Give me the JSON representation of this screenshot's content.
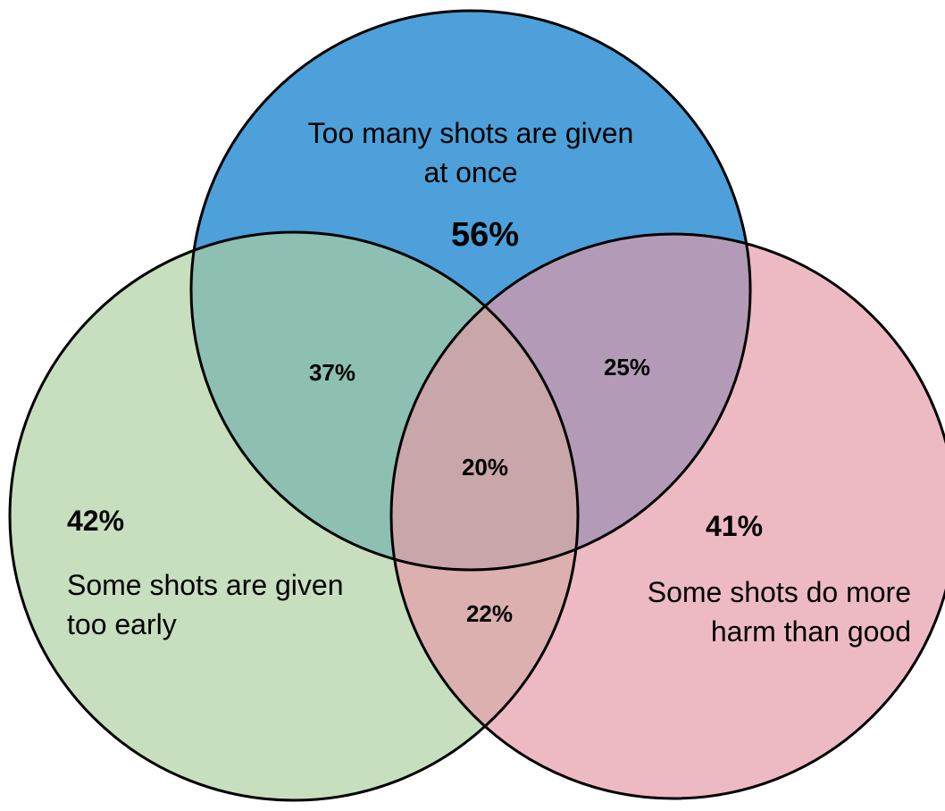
{
  "sets": {
    "top": {
      "label_line1": "Too many shots are given",
      "label_line2": "at once",
      "value": "56%",
      "color": "#2e8fd2"
    },
    "left": {
      "label_line1": "Some shots are given",
      "label_line2": "too early",
      "value": "42%",
      "color": "#acd09f"
    },
    "right": {
      "label_line1": "Some shots do more",
      "label_line2": "harm than good",
      "value": "41%",
      "color": "#e59aa6"
    }
  },
  "intersections": {
    "top_left": "37%",
    "top_right": "25%",
    "left_right": "22%",
    "all": "20%"
  }
}
